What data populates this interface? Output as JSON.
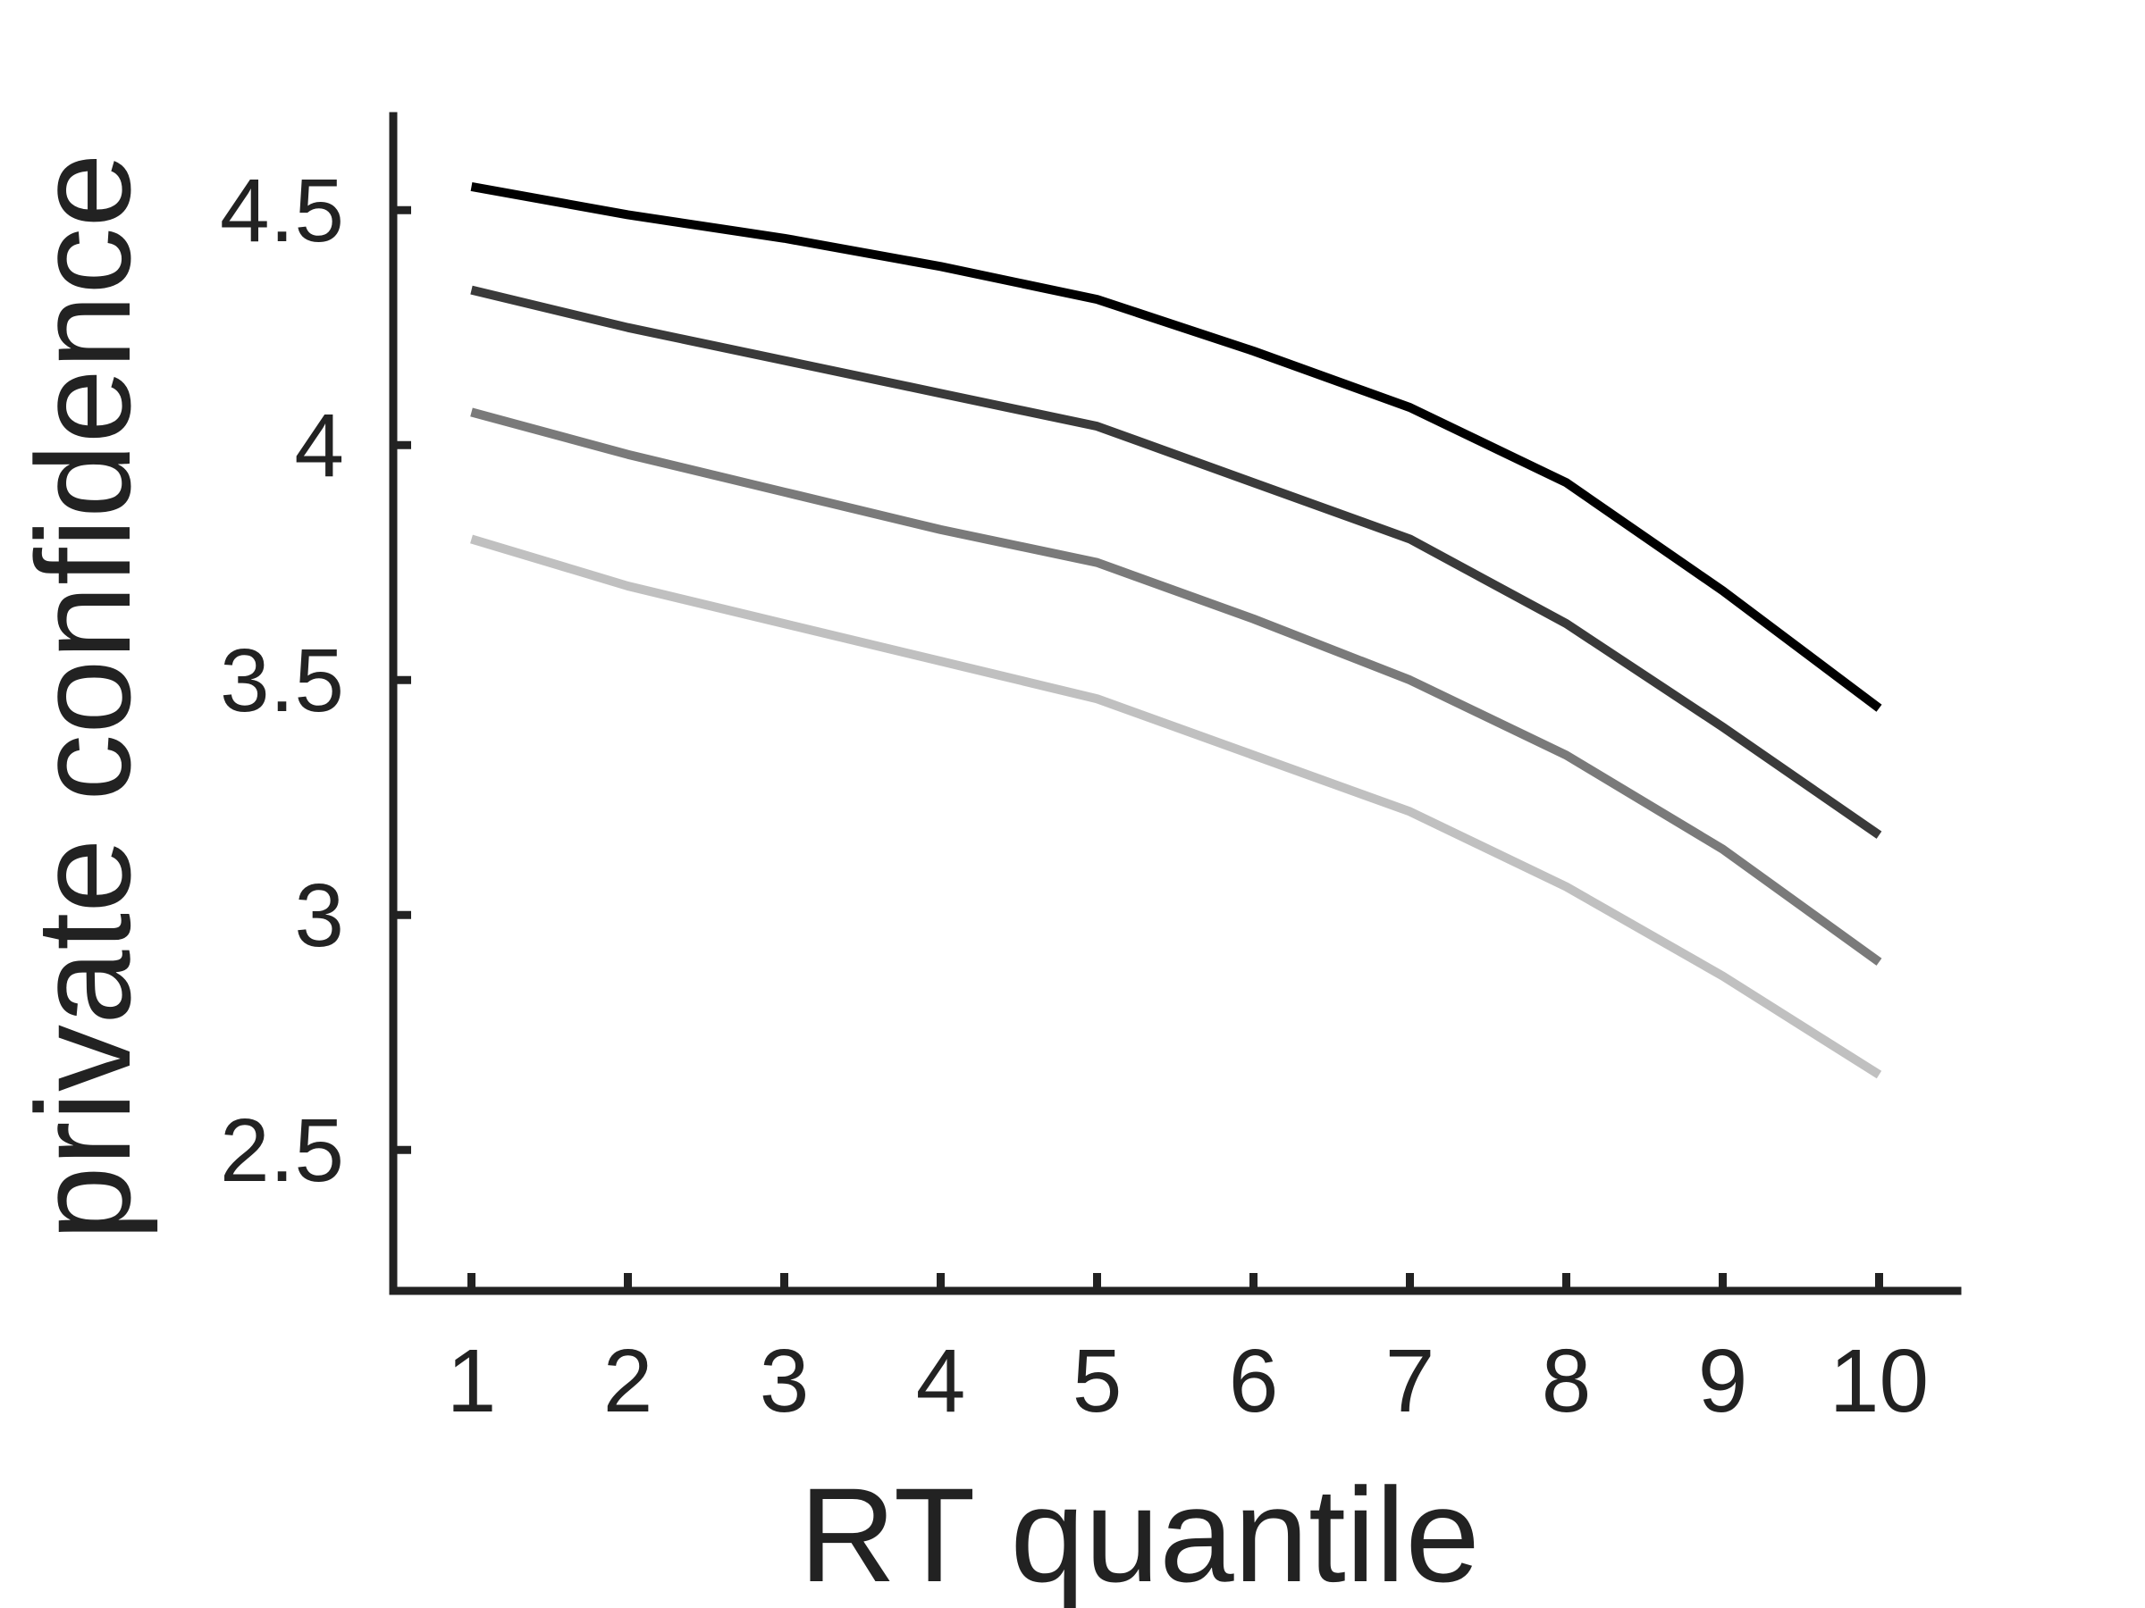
{
  "chart_data": {
    "type": "line",
    "title": "",
    "xlabel": "RT quantile",
    "ylabel": "private confidence",
    "x": [
      1,
      2,
      3,
      4,
      5,
      6,
      7,
      8,
      9,
      10
    ],
    "xlim": [
      0.5,
      10.5
    ],
    "ylim": [
      2.2,
      4.7
    ],
    "x_ticks": [
      1,
      2,
      3,
      4,
      5,
      6,
      7,
      8,
      9,
      10
    ],
    "y_ticks": [
      2.5,
      3,
      3.5,
      4,
      4.5
    ],
    "y_tick_labels": [
      "2.5",
      "3",
      "3.5",
      "4",
      "4.5"
    ],
    "grid": false,
    "legend": "none",
    "series": [
      {
        "color": "#000000",
        "values": [
          4.55,
          4.49,
          4.44,
          4.38,
          4.31,
          4.2,
          4.08,
          3.92,
          3.69,
          3.44
        ]
      },
      {
        "color": "#3a3a3a",
        "values": [
          4.33,
          4.25,
          4.18,
          4.11,
          4.04,
          3.92,
          3.8,
          3.62,
          3.4,
          3.17
        ]
      },
      {
        "color": "#7a7a7a",
        "values": [
          4.07,
          3.98,
          3.9,
          3.82,
          3.75,
          3.63,
          3.5,
          3.34,
          3.14,
          2.9
        ]
      },
      {
        "color": "#c0c0c0",
        "values": [
          3.8,
          3.7,
          3.62,
          3.54,
          3.46,
          3.34,
          3.22,
          3.06,
          2.87,
          2.66
        ]
      }
    ]
  }
}
